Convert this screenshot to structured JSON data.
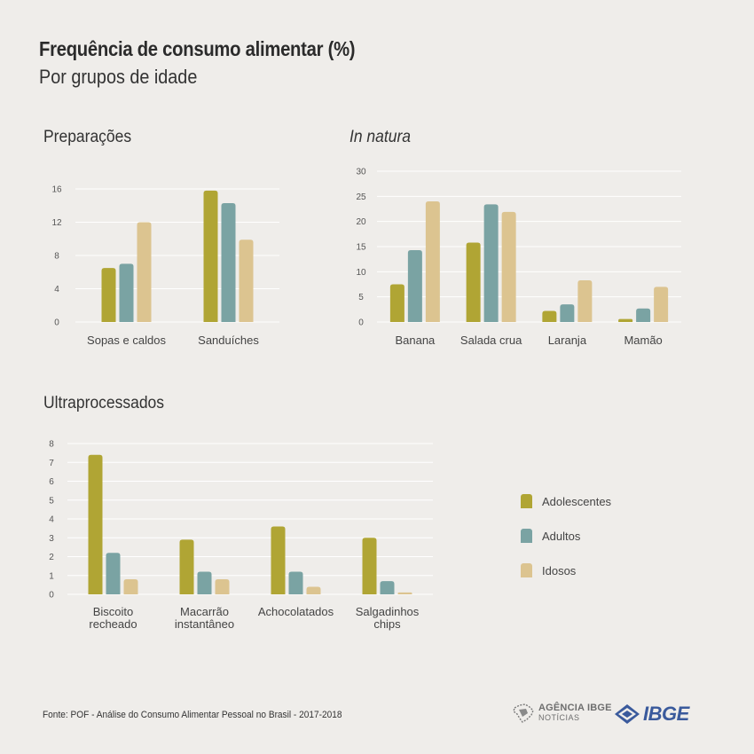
{
  "header": {
    "title": "Frequência de consumo alimentar (%)",
    "subtitle": "Por grupos de idade"
  },
  "colors": {
    "adolescentes": "#b0a534",
    "adultos": "#7aa3a3",
    "idosos": "#dcc490",
    "grid": "#ffffff"
  },
  "legend": {
    "items": [
      {
        "label": "Adolescentes",
        "color": "#b0a534"
      },
      {
        "label": "Adultos",
        "color": "#7aa3a3"
      },
      {
        "label": "Idosos",
        "color": "#dcc490"
      }
    ]
  },
  "chart_data": [
    {
      "type": "bar",
      "title": "Preparações",
      "title_italic": false,
      "categories": [
        "Sopas e caldos",
        "Sanduíches"
      ],
      "series": [
        {
          "name": "Adolescentes",
          "values": [
            6.5,
            15.8
          ]
        },
        {
          "name": "Adultos",
          "values": [
            7.0,
            14.3
          ]
        },
        {
          "name": "Idosos",
          "values": [
            12.0,
            9.9
          ]
        }
      ],
      "yticks": [
        0,
        4,
        8,
        12,
        16
      ],
      "ylim": [
        0,
        16
      ]
    },
    {
      "type": "bar",
      "title": "In natura",
      "title_italic": true,
      "categories": [
        "Banana",
        "Salada crua",
        "Laranja",
        "Mamão"
      ],
      "series": [
        {
          "name": "Adolescentes",
          "values": [
            7.5,
            15.8,
            2.2,
            0.6
          ]
        },
        {
          "name": "Adultos",
          "values": [
            14.3,
            23.4,
            3.5,
            2.7
          ]
        },
        {
          "name": "Idosos",
          "values": [
            24.0,
            21.9,
            8.3,
            7.0
          ]
        }
      ],
      "yticks": [
        0,
        5,
        10,
        15,
        20,
        25,
        30
      ],
      "ylim": [
        0,
        30
      ]
    },
    {
      "type": "bar",
      "title": "Ultraprocessados",
      "title_italic": false,
      "categories": [
        [
          "Biscoito",
          "recheado"
        ],
        [
          "Macarrão",
          "instantâneo"
        ],
        [
          "Achocolatados"
        ],
        [
          "Salgadinhos",
          "chips"
        ]
      ],
      "series": [
        {
          "name": "Adolescentes",
          "values": [
            7.4,
            2.9,
            3.6,
            3.0
          ]
        },
        {
          "name": "Adultos",
          "values": [
            2.2,
            1.2,
            1.2,
            0.7
          ]
        },
        {
          "name": "Idosos",
          "values": [
            0.8,
            0.8,
            0.4,
            0.1
          ]
        }
      ],
      "yticks": [
        0,
        1,
        2,
        3,
        4,
        5,
        6,
        7,
        8
      ],
      "ylim": [
        0,
        8
      ]
    }
  ],
  "footer": {
    "source": "Fonte: POF - Análise do Consumo Alimentar Pessoal no Brasil - 2017-2018"
  },
  "logos": {
    "agencia_name": "AGÊNCIA IBGE",
    "agencia_sub": "NOTÍCIAS",
    "ibge_name": "IBGE"
  }
}
